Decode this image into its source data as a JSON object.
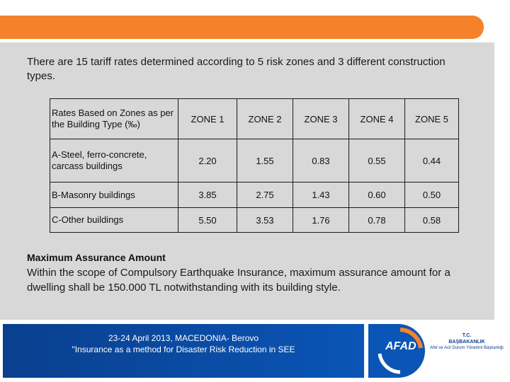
{
  "intro": "There are 15 tariff rates determined according to 5 risk zones and 3 different construction types.",
  "table": {
    "header": [
      "Rates Based on Zones as per the Building Type (‰)",
      "ZONE 1",
      "ZONE 2",
      "ZONE 3",
      "ZONE 4",
      "ZONE 5"
    ],
    "rows": [
      {
        "label": "A-Steel, ferro-concrete, carcass buildings",
        "values": [
          "2.20",
          "1.55",
          "0.83",
          "0.55",
          "0.44"
        ]
      },
      {
        "label": "B-Masonry buildings",
        "values": [
          "3.85",
          "2.75",
          "1.43",
          "0.60",
          "0.50"
        ]
      },
      {
        "label": "C-Other buildings",
        "values": [
          "5.50",
          "3.53",
          "1.76",
          "0.78",
          "0.58"
        ]
      }
    ]
  },
  "maximum": {
    "title": "Maximum Assurance Amount",
    "text": "Within the scope of Compulsory Earthquake Insurance, maximum assurance amount for a dwelling shall be 150.000 TL notwithstanding with its building style."
  },
  "footer": {
    "line1": "23-24 April 2013, MACEDONIA- Berovo",
    "line2": "\"Insurance as a method for Disaster Risk Reduction in SEE",
    "logo": "AFAD",
    "org_line1": "T.C.",
    "org_line2": "BAŞBAKANLIK",
    "org_line3": "Afet ve Acil Durum Yönetimi Başkanlığı"
  },
  "colors": {
    "accent": "#f5822a",
    "panel": "#d8d8d8",
    "footer_blue": "#0a55b6"
  }
}
